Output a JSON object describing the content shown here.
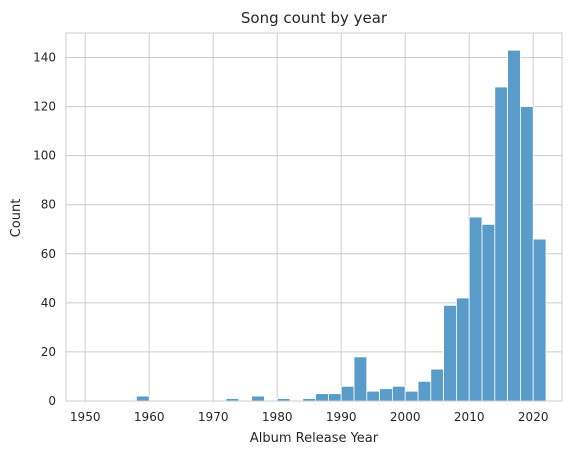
{
  "chart_data": {
    "type": "bar",
    "title": "Song count by year",
    "xlabel": "Album Release Year",
    "ylabel": "Count",
    "xlim": [
      1947,
      2024.5
    ],
    "ylim": [
      0,
      150
    ],
    "xticks": [
      1950,
      1960,
      1970,
      1980,
      1990,
      2000,
      2010,
      2020
    ],
    "yticks": [
      0,
      20,
      40,
      60,
      80,
      100,
      120,
      140
    ],
    "grid": true,
    "bar_color": "#5a9cc9",
    "bar_edge_color": "#ffffff",
    "bins": [
      {
        "x0": 1950.0,
        "x1": 1952.0,
        "value": 0
      },
      {
        "x0": 1952.0,
        "x1": 1954.0,
        "value": 0
      },
      {
        "x0": 1954.0,
        "x1": 1956.0,
        "value": 0
      },
      {
        "x0": 1956.0,
        "x1": 1958.0,
        "value": 0
      },
      {
        "x0": 1958.0,
        "x1": 1960.0,
        "value": 2
      },
      {
        "x0": 1960.0,
        "x1": 1962.0,
        "value": 0
      },
      {
        "x0": 1962.0,
        "x1": 1964.0,
        "value": 0
      },
      {
        "x0": 1964.0,
        "x1": 1966.0,
        "value": 0
      },
      {
        "x0": 1966.0,
        "x1": 1968.0,
        "value": 0
      },
      {
        "x0": 1968.0,
        "x1": 1970.0,
        "value": 0
      },
      {
        "x0": 1970.0,
        "x1": 1972.0,
        "value": 0
      },
      {
        "x0": 1972.0,
        "x1": 1974.0,
        "value": 1
      },
      {
        "x0": 1974.0,
        "x1": 1976.0,
        "value": 0
      },
      {
        "x0": 1976.0,
        "x1": 1978.0,
        "value": 2
      },
      {
        "x0": 1978.0,
        "x1": 1980.0,
        "value": 0
      },
      {
        "x0": 1980.0,
        "x1": 1982.0,
        "value": 1
      },
      {
        "x0": 1982.0,
        "x1": 1984.0,
        "value": 0
      },
      {
        "x0": 1984.0,
        "x1": 1986.0,
        "value": 1
      },
      {
        "x0": 1986.0,
        "x1": 1988.0,
        "value": 3
      },
      {
        "x0": 1988.0,
        "x1": 1990.0,
        "value": 3
      },
      {
        "x0": 1990.0,
        "x1": 1992.0,
        "value": 6
      },
      {
        "x0": 1992.0,
        "x1": 1994.0,
        "value": 18
      },
      {
        "x0": 1994.0,
        "x1": 1996.0,
        "value": 4
      },
      {
        "x0": 1996.0,
        "x1": 1998.0,
        "value": 5
      },
      {
        "x0": 1998.0,
        "x1": 2000.0,
        "value": 6
      },
      {
        "x0": 2000.0,
        "x1": 2002.0,
        "value": 4
      },
      {
        "x0": 2002.0,
        "x1": 2004.0,
        "value": 8
      },
      {
        "x0": 2004.0,
        "x1": 2006.0,
        "value": 13
      },
      {
        "x0": 2006.0,
        "x1": 2008.0,
        "value": 39
      },
      {
        "x0": 2008.0,
        "x1": 2010.0,
        "value": 42
      },
      {
        "x0": 2010.0,
        "x1": 2012.0,
        "value": 75
      },
      {
        "x0": 2012.0,
        "x1": 2014.0,
        "value": 72
      },
      {
        "x0": 2014.0,
        "x1": 2016.0,
        "value": 128
      },
      {
        "x0": 2016.0,
        "x1": 2018.0,
        "value": 143
      },
      {
        "x0": 2018.0,
        "x1": 2020.0,
        "value": 120
      },
      {
        "x0": 2020.0,
        "x1": 2022.0,
        "value": 66
      }
    ]
  }
}
